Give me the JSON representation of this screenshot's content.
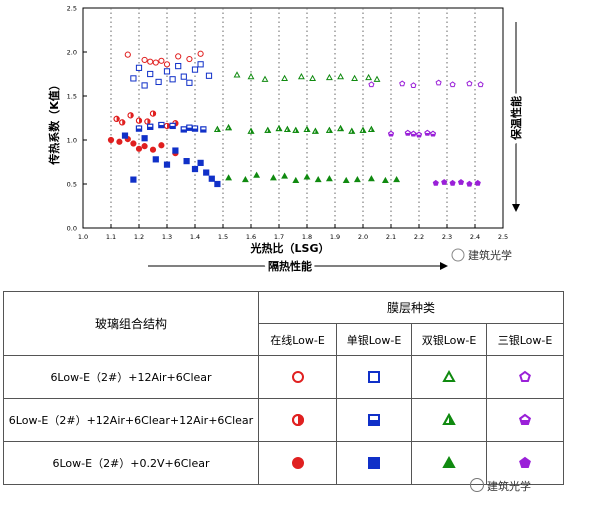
{
  "chart_data": {
    "type": "scatter",
    "xlabel": "光热比（LSG）",
    "ylabel": "传热系数（K值）",
    "xlim": [
      1.0,
      2.5
    ],
    "ylim": [
      0.0,
      2.5
    ],
    "xticks": [
      "1.0",
      "1.1",
      "1.2",
      "1.3",
      "1.4",
      "1.5",
      "1.6",
      "1.7",
      "1.8",
      "1.9",
      "2.0",
      "2.1",
      "2.2",
      "2.3",
      "2.4",
      "2.5"
    ],
    "yticks": [
      "0.0",
      "0.5",
      "1.0",
      "1.5",
      "2.0",
      "2.5"
    ],
    "x_arrow_label": "隔热性能",
    "y_arrow_label": "保温性能",
    "grid": "dotted vertical",
    "series": [
      {
        "name": "在线Low-E 双层",
        "color": "#e02020",
        "shape": "circle",
        "fill": "open",
        "points": [
          [
            1.16,
            1.97
          ],
          [
            1.22,
            1.91
          ],
          [
            1.24,
            1.89
          ],
          [
            1.26,
            1.88
          ],
          [
            1.28,
            1.9
          ],
          [
            1.3,
            1.86
          ],
          [
            1.34,
            1.95
          ],
          [
            1.38,
            1.92
          ],
          [
            1.42,
            1.98
          ]
        ]
      },
      {
        "name": "在线Low-E 三层",
        "color": "#e02020",
        "shape": "circle",
        "fill": "half",
        "points": [
          [
            1.12,
            1.24
          ],
          [
            1.14,
            1.2
          ],
          [
            1.17,
            1.28
          ],
          [
            1.2,
            1.22
          ],
          [
            1.23,
            1.21
          ],
          [
            1.25,
            1.3
          ],
          [
            1.3,
            1.16
          ],
          [
            1.33,
            1.19
          ]
        ]
      },
      {
        "name": "在线Low-E 真空",
        "color": "#e02020",
        "shape": "circle",
        "fill": "solid",
        "points": [
          [
            1.1,
            1.0
          ],
          [
            1.13,
            0.98
          ],
          [
            1.16,
            1.01
          ],
          [
            1.18,
            0.96
          ],
          [
            1.2,
            0.9
          ],
          [
            1.22,
            0.93
          ],
          [
            1.25,
            0.89
          ],
          [
            1.28,
            0.94
          ],
          [
            1.33,
            0.85
          ]
        ]
      },
      {
        "name": "单银Low-E 双层",
        "color": "#1030c8",
        "shape": "square",
        "fill": "open",
        "points": [
          [
            1.18,
            1.7
          ],
          [
            1.2,
            1.82
          ],
          [
            1.22,
            1.62
          ],
          [
            1.24,
            1.75
          ],
          [
            1.27,
            1.66
          ],
          [
            1.3,
            1.78
          ],
          [
            1.32,
            1.69
          ],
          [
            1.34,
            1.84
          ],
          [
            1.36,
            1.72
          ],
          [
            1.38,
            1.65
          ],
          [
            1.4,
            1.8
          ],
          [
            1.42,
            1.86
          ],
          [
            1.45,
            1.73
          ]
        ]
      },
      {
        "name": "单银Low-E 三层",
        "color": "#1030c8",
        "shape": "square",
        "fill": "half",
        "points": [
          [
            1.2,
            1.13
          ],
          [
            1.24,
            1.15
          ],
          [
            1.28,
            1.17
          ],
          [
            1.32,
            1.16
          ],
          [
            1.36,
            1.12
          ],
          [
            1.38,
            1.14
          ],
          [
            1.4,
            1.13
          ],
          [
            1.43,
            1.12
          ]
        ]
      },
      {
        "name": "单银Low-E 真空",
        "color": "#1030c8",
        "shape": "square",
        "fill": "solid",
        "points": [
          [
            1.15,
            1.05
          ],
          [
            1.18,
            0.55
          ],
          [
            1.22,
            1.02
          ],
          [
            1.26,
            0.78
          ],
          [
            1.3,
            0.72
          ],
          [
            1.33,
            0.88
          ],
          [
            1.37,
            0.76
          ],
          [
            1.4,
            0.67
          ],
          [
            1.42,
            0.74
          ],
          [
            1.44,
            0.63
          ],
          [
            1.46,
            0.56
          ],
          [
            1.48,
            0.5
          ]
        ]
      },
      {
        "name": "双银Low-E 双层",
        "color": "#108a10",
        "shape": "triangle",
        "fill": "open",
        "points": [
          [
            1.55,
            1.74
          ],
          [
            1.6,
            1.72
          ],
          [
            1.65,
            1.69
          ],
          [
            1.72,
            1.7
          ],
          [
            1.78,
            1.72
          ],
          [
            1.82,
            1.7
          ],
          [
            1.88,
            1.71
          ],
          [
            1.92,
            1.72
          ],
          [
            1.97,
            1.7
          ],
          [
            2.02,
            1.71
          ],
          [
            2.05,
            1.69
          ]
        ]
      },
      {
        "name": "双银Low-E 三层",
        "color": "#108a10",
        "shape": "triangle",
        "fill": "half",
        "points": [
          [
            1.48,
            1.12
          ],
          [
            1.52,
            1.14
          ],
          [
            1.6,
            1.1
          ],
          [
            1.66,
            1.11
          ],
          [
            1.7,
            1.13
          ],
          [
            1.73,
            1.12
          ],
          [
            1.76,
            1.11
          ],
          [
            1.8,
            1.12
          ],
          [
            1.83,
            1.1
          ],
          [
            1.88,
            1.11
          ],
          [
            1.92,
            1.13
          ],
          [
            1.96,
            1.1
          ],
          [
            2.0,
            1.11
          ],
          [
            2.03,
            1.12
          ]
        ]
      },
      {
        "name": "双银Low-E 真空",
        "color": "#108a10",
        "shape": "triangle",
        "fill": "solid",
        "points": [
          [
            1.52,
            0.57
          ],
          [
            1.58,
            0.55
          ],
          [
            1.62,
            0.6
          ],
          [
            1.68,
            0.57
          ],
          [
            1.72,
            0.59
          ],
          [
            1.76,
            0.54
          ],
          [
            1.8,
            0.58
          ],
          [
            1.84,
            0.55
          ],
          [
            1.88,
            0.56
          ],
          [
            1.94,
            0.54
          ],
          [
            1.98,
            0.55
          ],
          [
            2.03,
            0.56
          ],
          [
            2.08,
            0.54
          ],
          [
            2.12,
            0.55
          ]
        ]
      },
      {
        "name": "三银Low-E 双层",
        "color": "#9a20d8",
        "shape": "pentagon",
        "fill": "open",
        "points": [
          [
            2.03,
            1.63
          ],
          [
            2.14,
            1.64
          ],
          [
            2.18,
            1.62
          ],
          [
            2.27,
            1.65
          ],
          [
            2.32,
            1.63
          ],
          [
            2.38,
            1.64
          ],
          [
            2.42,
            1.63
          ]
        ]
      },
      {
        "name": "三银Low-E 三层",
        "color": "#9a20d8",
        "shape": "pentagon",
        "fill": "half",
        "points": [
          [
            2.1,
            1.07
          ],
          [
            2.16,
            1.08
          ],
          [
            2.18,
            1.07
          ],
          [
            2.2,
            1.06
          ],
          [
            2.23,
            1.08
          ],
          [
            2.25,
            1.07
          ]
        ]
      },
      {
        "name": "三银Low-E 真空",
        "color": "#9a20d8",
        "shape": "pentagon",
        "fill": "solid",
        "points": [
          [
            2.26,
            0.51
          ],
          [
            2.29,
            0.52
          ],
          [
            2.32,
            0.51
          ],
          [
            2.35,
            0.52
          ],
          [
            2.38,
            0.5
          ],
          [
            2.41,
            0.51
          ]
        ]
      }
    ]
  },
  "watermark_chart": "建筑光学",
  "watermark_table": "建筑光学",
  "table": {
    "header_col1": "玻璃组合结构",
    "header_group": "膜层种类",
    "col_headers": [
      "在线Low-E",
      "单银Low-E",
      "双银Low-E",
      "三银Low-E"
    ],
    "rows": [
      {
        "label": "6Low-E（2#）+12Air+6Clear",
        "fill": "open"
      },
      {
        "label": "6Low-E（2#）+12Air+6Clear+12Air+6Clear",
        "fill": "half"
      },
      {
        "label": "6Low-E（2#）+0.2V+6Clear",
        "fill": "solid"
      }
    ],
    "columns": [
      {
        "shape": "circle",
        "color": "#e02020"
      },
      {
        "shape": "square",
        "color": "#1030c8"
      },
      {
        "shape": "triangle",
        "color": "#108a10"
      },
      {
        "shape": "pentagon",
        "color": "#9a20d8"
      }
    ]
  }
}
